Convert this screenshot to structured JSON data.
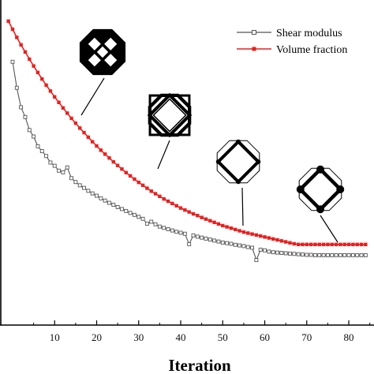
{
  "chart_data": {
    "type": "line",
    "xlabel": "Iteration",
    "ylabel": "",
    "xlim": [
      -3,
      86
    ],
    "ylim": [
      0,
      1
    ],
    "x_ticks": [
      10,
      20,
      30,
      40,
      50,
      60,
      70,
      80
    ],
    "legend_position": "top-right",
    "series": [
      {
        "name": "Shear modulus",
        "color": "#555555",
        "marker": "open-square",
        "x": [
          0,
          1,
          2,
          3,
          4,
          5,
          6,
          7,
          8,
          9,
          10,
          11,
          12,
          13,
          14,
          15,
          16,
          17,
          18,
          19,
          20,
          21,
          22,
          23,
          24,
          25,
          26,
          27,
          28,
          29,
          30,
          31,
          32,
          33,
          34,
          35,
          36,
          37,
          38,
          39,
          40,
          41,
          42,
          43,
          44,
          45,
          46,
          47,
          48,
          49,
          50,
          51,
          52,
          53,
          54,
          55,
          56,
          57,
          58,
          59,
          60,
          61,
          62,
          63,
          64,
          65,
          66,
          67,
          68,
          69,
          70,
          71,
          72,
          73,
          74,
          75,
          76,
          77,
          78,
          79,
          80,
          81,
          82,
          83,
          84
        ],
        "y": [
          0.81,
          0.73,
          0.67,
          0.64,
          0.6,
          0.58,
          0.55,
          0.535,
          0.52,
          0.5,
          0.49,
          0.475,
          0.47,
          0.485,
          0.452,
          0.44,
          0.43,
          0.422,
          0.413,
          0.405,
          0.398,
          0.39,
          0.383,
          0.376,
          0.37,
          0.363,
          0.357,
          0.351,
          0.345,
          0.339,
          0.333,
          0.327,
          0.312,
          0.318,
          0.31,
          0.303,
          0.299,
          0.295,
          0.291,
          0.287,
          0.284,
          0.281,
          0.249,
          0.276,
          0.272,
          0.269,
          0.266,
          0.263,
          0.26,
          0.257,
          0.254,
          0.252,
          0.25,
          0.247,
          0.245,
          0.243,
          0.24,
          0.238,
          0.2,
          0.232,
          0.23,
          0.226,
          0.224,
          0.223,
          0.222,
          0.221,
          0.22,
          0.219,
          0.218,
          0.217,
          0.216,
          0.216,
          0.215,
          0.215,
          0.215,
          0.215,
          0.215,
          0.215,
          0.215,
          0.215,
          0.215,
          0.215,
          0.215,
          0.215,
          0.215
        ]
      },
      {
        "name": "Volume fraction",
        "color": "#e8201f",
        "marker": "filled-square",
        "x": [
          -1,
          0,
          1,
          2,
          3,
          4,
          5,
          6,
          7,
          8,
          9,
          10,
          11,
          12,
          13,
          14,
          15,
          16,
          17,
          18,
          19,
          20,
          21,
          22,
          23,
          24,
          25,
          26,
          27,
          28,
          29,
          30,
          31,
          32,
          33,
          34,
          35,
          36,
          37,
          38,
          39,
          40,
          41,
          42,
          43,
          44,
          45,
          46,
          47,
          48,
          49,
          50,
          51,
          52,
          53,
          54,
          55,
          56,
          57,
          58,
          59,
          60,
          61,
          62,
          63,
          64,
          65,
          66,
          67,
          68,
          69,
          70,
          71,
          72,
          73,
          74,
          75,
          76,
          77,
          78,
          79,
          80,
          81,
          82,
          83,
          84
        ],
        "y": [
          0.935,
          0.91,
          0.885,
          0.862,
          0.84,
          0.818,
          0.797,
          0.777,
          0.757,
          0.738,
          0.72,
          0.702,
          0.685,
          0.668,
          0.652,
          0.636,
          0.621,
          0.606,
          0.592,
          0.578,
          0.564,
          0.551,
          0.538,
          0.526,
          0.514,
          0.502,
          0.491,
          0.48,
          0.469,
          0.459,
          0.449,
          0.439,
          0.43,
          0.421,
          0.412,
          0.404,
          0.396,
          0.388,
          0.381,
          0.374,
          0.367,
          0.36,
          0.354,
          0.348,
          0.342,
          0.337,
          0.331,
          0.326,
          0.321,
          0.316,
          0.311,
          0.306,
          0.302,
          0.298,
          0.294,
          0.29,
          0.286,
          0.283,
          0.28,
          0.277,
          0.274,
          0.271,
          0.268,
          0.265,
          0.262,
          0.259,
          0.256,
          0.253,
          0.25,
          0.248,
          0.248,
          0.248,
          0.248,
          0.248,
          0.248,
          0.248,
          0.248,
          0.248,
          0.248,
          0.248,
          0.248,
          0.248,
          0.248,
          0.248,
          0.248,
          0.248
        ]
      }
    ],
    "annotations": [
      {
        "name": "structure-1",
        "variant": 1,
        "x": 20,
        "y": 0.605
      },
      {
        "name": "structure-2",
        "variant": 2,
        "x": 38,
        "y": 0.47
      },
      {
        "name": "structure-3",
        "variant": 3,
        "x": 56,
        "y": 0.362
      },
      {
        "name": "structure-4",
        "variant": 4,
        "x": 80,
        "y": 0.277
      }
    ]
  }
}
